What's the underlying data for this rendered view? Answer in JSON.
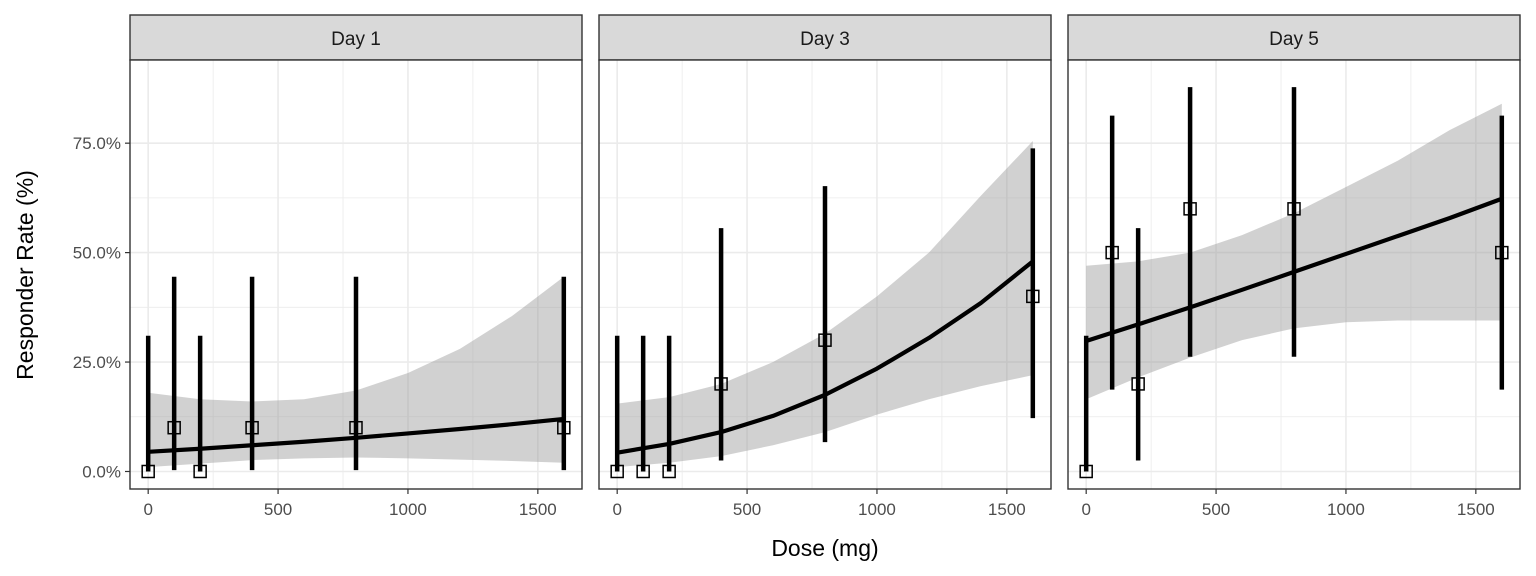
{
  "chart_data": {
    "type": "line",
    "xlabel": "Dose (mg)",
    "ylabel": "Responder Rate (%)",
    "xlim": [
      -70,
      1670
    ],
    "ylim": [
      -0.04,
      0.94
    ],
    "x_ticks": [
      0,
      500,
      1000,
      1500
    ],
    "x_tick_labels": [
      "0",
      "500",
      "1000",
      "1500"
    ],
    "y_ticks": [
      0,
      0.25,
      0.5,
      0.75
    ],
    "y_tick_labels": [
      "0.0%",
      "25.0%",
      "50.0%",
      "75.0%"
    ],
    "grid": true,
    "legend": "none",
    "panels": [
      {
        "label": "Day 1",
        "points": [
          {
            "dose": 0,
            "rate": 0.0,
            "lower": 0.0,
            "upper": 0.31
          },
          {
            "dose": 100,
            "rate": 0.1,
            "lower": 0.003,
            "upper": 0.445
          },
          {
            "dose": 200,
            "rate": 0.0,
            "lower": 0.0,
            "upper": 0.31
          },
          {
            "dose": 400,
            "rate": 0.1,
            "lower": 0.003,
            "upper": 0.445
          },
          {
            "dose": 800,
            "rate": 0.1,
            "lower": 0.003,
            "upper": 0.445
          },
          {
            "dose": 1600,
            "rate": 0.1,
            "lower": 0.003,
            "upper": 0.445
          }
        ],
        "fit": {
          "x": [
            0,
            200,
            400,
            600,
            800,
            1000,
            1200,
            1400,
            1600
          ],
          "y": [
            0.045,
            0.052,
            0.06,
            0.068,
            0.077,
            0.087,
            0.097,
            0.108,
            0.12
          ],
          "lower": [
            0.01,
            0.018,
            0.026,
            0.03,
            0.032,
            0.03,
            0.027,
            0.024,
            0.02
          ],
          "upper": [
            0.18,
            0.165,
            0.16,
            0.165,
            0.185,
            0.225,
            0.28,
            0.355,
            0.445
          ]
        }
      },
      {
        "label": "Day 3",
        "points": [
          {
            "dose": 0,
            "rate": 0.0,
            "lower": 0.0,
            "upper": 0.31
          },
          {
            "dose": 100,
            "rate": 0.0,
            "lower": 0.0,
            "upper": 0.31
          },
          {
            "dose": 200,
            "rate": 0.0,
            "lower": 0.0,
            "upper": 0.31
          },
          {
            "dose": 400,
            "rate": 0.2,
            "lower": 0.025,
            "upper": 0.556
          },
          {
            "dose": 800,
            "rate": 0.3,
            "lower": 0.067,
            "upper": 0.652
          },
          {
            "dose": 1600,
            "rate": 0.4,
            "lower": 0.122,
            "upper": 0.738
          }
        ],
        "fit": {
          "x": [
            0,
            200,
            400,
            600,
            800,
            1000,
            1200,
            1400,
            1600
          ],
          "y": [
            0.043,
            0.063,
            0.09,
            0.127,
            0.175,
            0.235,
            0.305,
            0.385,
            0.48
          ],
          "lower": [
            0.01,
            0.02,
            0.035,
            0.06,
            0.09,
            0.13,
            0.165,
            0.195,
            0.22
          ],
          "upper": [
            0.155,
            0.17,
            0.2,
            0.25,
            0.315,
            0.4,
            0.5,
            0.63,
            0.755
          ]
        }
      },
      {
        "label": "Day 5",
        "points": [
          {
            "dose": 0,
            "rate": 0.0,
            "lower": 0.0,
            "upper": 0.31
          },
          {
            "dose": 100,
            "rate": 0.5,
            "lower": 0.187,
            "upper": 0.813
          },
          {
            "dose": 200,
            "rate": 0.2,
            "lower": 0.025,
            "upper": 0.556
          },
          {
            "dose": 400,
            "rate": 0.6,
            "lower": 0.262,
            "upper": 0.878
          },
          {
            "dose": 800,
            "rate": 0.6,
            "lower": 0.262,
            "upper": 0.878
          },
          {
            "dose": 1600,
            "rate": 0.5,
            "lower": 0.187,
            "upper": 0.813
          }
        ],
        "fit": {
          "x": [
            0,
            200,
            400,
            600,
            800,
            1000,
            1200,
            1400,
            1600
          ],
          "y": [
            0.298,
            0.336,
            0.375,
            0.415,
            0.456,
            0.497,
            0.538,
            0.579,
            0.623
          ],
          "lower": [
            0.165,
            0.215,
            0.26,
            0.3,
            0.327,
            0.341,
            0.345,
            0.345,
            0.345
          ],
          "upper": [
            0.47,
            0.48,
            0.5,
            0.54,
            0.59,
            0.65,
            0.71,
            0.78,
            0.84
          ]
        }
      }
    ]
  }
}
